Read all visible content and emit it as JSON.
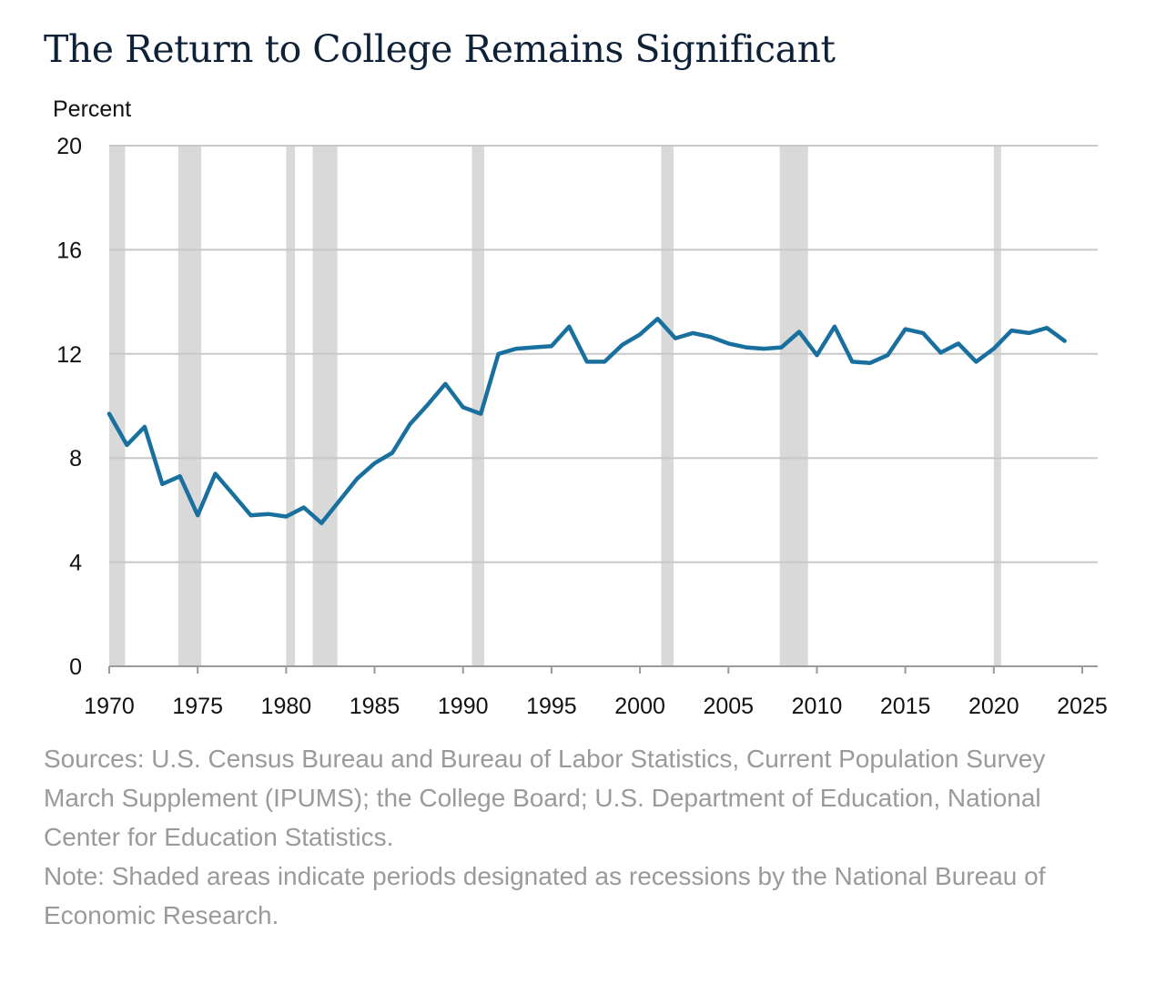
{
  "title": "The Return to College Remains Significant",
  "sources": "Sources: U.S. Census Bureau and Bureau of Labor Statistics, Current Population Survey March Supplement (IPUMS); the College Board; U.S. Department of Education, National Center for Education Statistics.",
  "note": "Note: Shaded areas indicate periods designated as recessions by the National Bureau of Economic Research.",
  "chart_data": {
    "type": "line",
    "title": "The Return to College Remains Significant",
    "xlabel": "",
    "ylabel": "Percent",
    "xlim": [
      1970,
      2025
    ],
    "ylim": [
      0,
      20
    ],
    "x_ticks": [
      1970,
      1975,
      1980,
      1985,
      1990,
      1995,
      2000,
      2005,
      2010,
      2015,
      2020,
      2025
    ],
    "y_ticks": [
      0,
      4,
      8,
      12,
      16,
      20
    ],
    "grid": true,
    "line_color": "#19709e",
    "recession_color": "#d9d9d9",
    "recessions": [
      [
        1970.0,
        1970.9
      ],
      [
        1973.9,
        1975.2
      ],
      [
        1980.0,
        1980.5
      ],
      [
        1981.5,
        1982.9
      ],
      [
        1990.5,
        1991.2
      ],
      [
        2001.2,
        2001.9
      ],
      [
        2007.9,
        2009.5
      ],
      [
        2020.0,
        2020.3
      ]
    ],
    "series": [
      {
        "x": [
          1970,
          1971,
          1972,
          1973,
          1974,
          1975,
          1976,
          1977,
          1978,
          1979,
          1980,
          1981,
          1982,
          1983,
          1984,
          1985,
          1986,
          1987,
          1988,
          1989,
          1990,
          1991,
          1992,
          1993,
          1994,
          1995,
          1996,
          1997,
          1998,
          1999,
          2000,
          2001,
          2002,
          2003,
          2004,
          2005,
          2006,
          2007,
          2008,
          2009,
          2010,
          2011,
          2012,
          2013,
          2014,
          2015,
          2016,
          2017,
          2018,
          2019,
          2020,
          2021,
          2022,
          2023,
          2024
        ],
        "values": [
          9.7,
          8.5,
          9.2,
          7.0,
          7.3,
          5.8,
          7.4,
          6.6,
          5.8,
          5.85,
          5.75,
          6.1,
          5.5,
          6.35,
          7.2,
          7.8,
          8.2,
          9.3,
          10.05,
          10.85,
          9.95,
          9.7,
          12.0,
          12.2,
          12.25,
          12.3,
          13.05,
          11.7,
          11.7,
          12.35,
          12.75,
          13.35,
          12.6,
          12.8,
          12.65,
          12.4,
          12.25,
          12.2,
          12.25,
          12.85,
          11.95,
          13.05,
          11.7,
          11.65,
          11.95,
          12.95,
          12.8,
          12.05,
          12.4,
          11.7,
          12.2,
          12.9,
          12.8,
          13.0,
          12.5
        ]
      }
    ]
  }
}
